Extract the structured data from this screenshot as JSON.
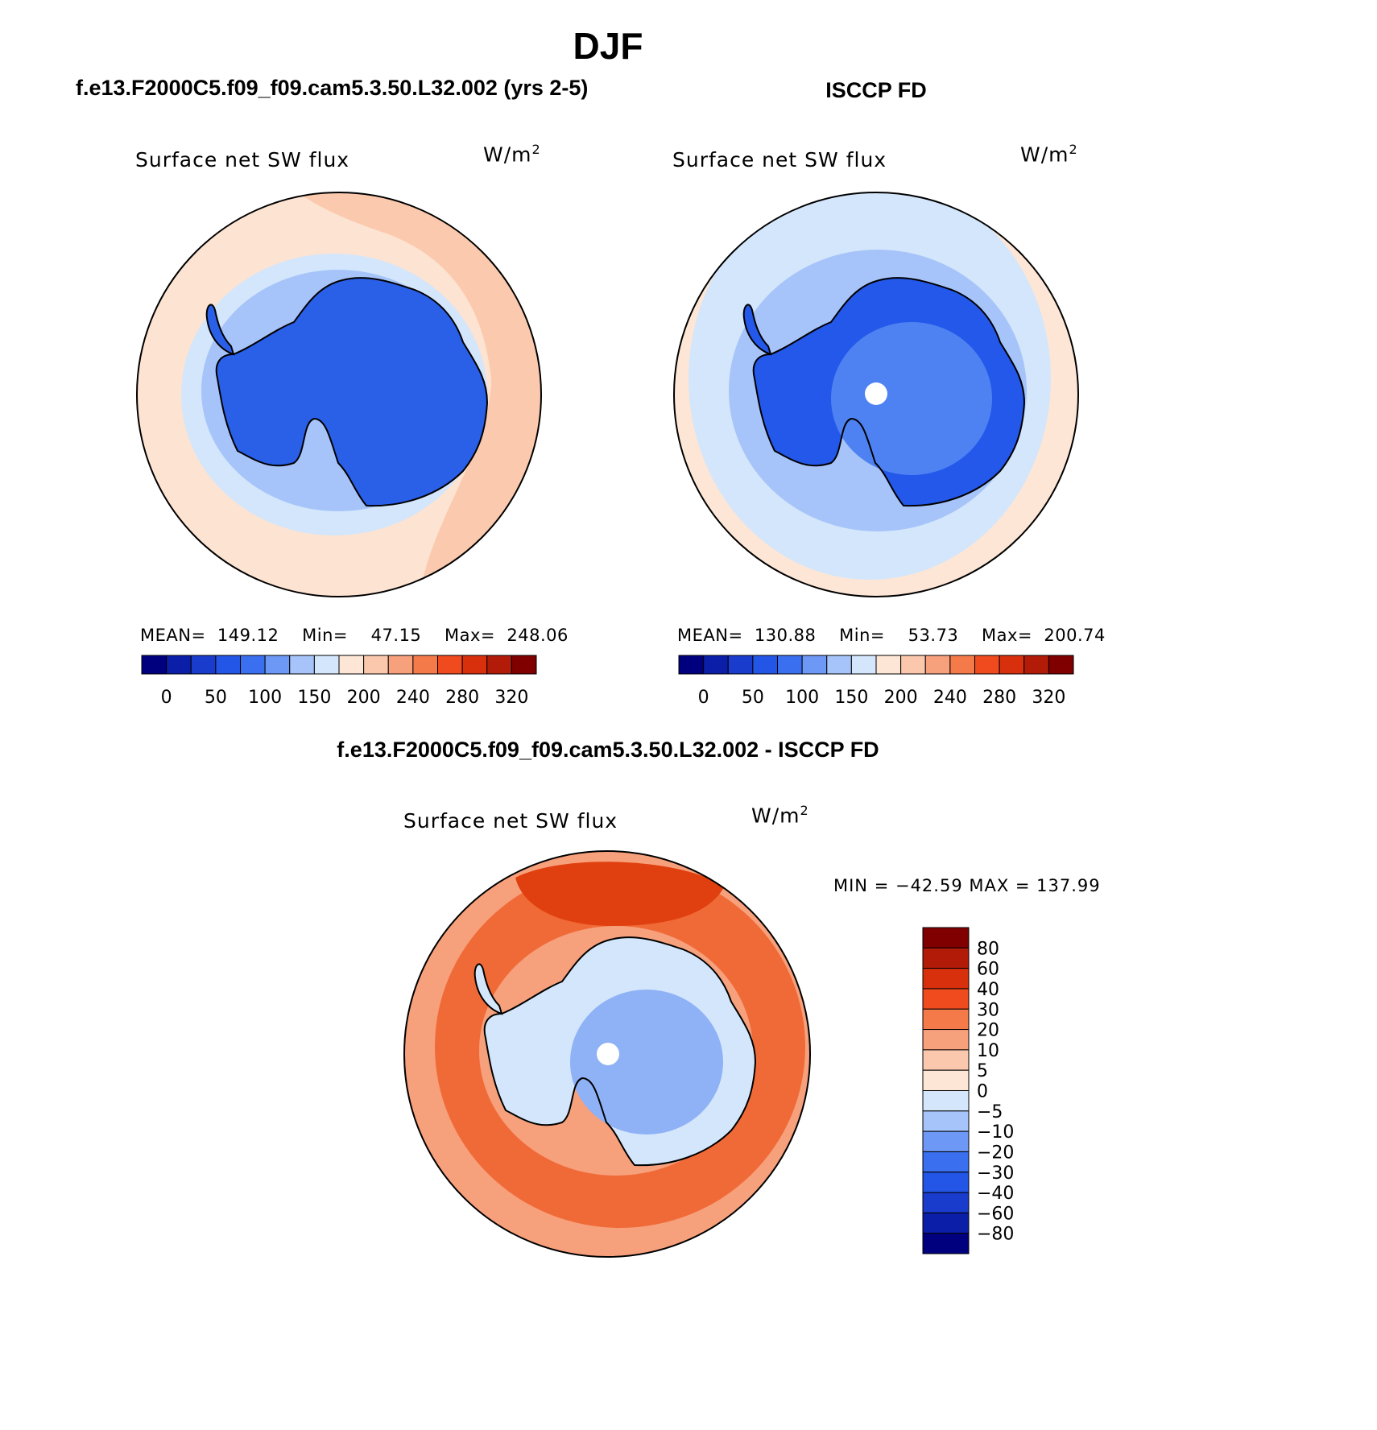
{
  "page": {
    "title": "DJF"
  },
  "panels": [
    {
      "id": "model",
      "heading": "f.e13.F2000C5.f09_f09.cam5.3.50.L32.002 (yrs 2-5)",
      "variable": "Surface net SW flux",
      "units_base": "W/m",
      "units_exp": "2",
      "stats": {
        "mean_label": "MEAN=",
        "mean": "149.12",
        "min_label": "Min=",
        "min": "47.15",
        "max_label": "Max=",
        "max": "248.06"
      }
    },
    {
      "id": "obs",
      "heading": "ISCCP FD",
      "variable": "Surface net SW flux",
      "units_base": "W/m",
      "units_exp": "2",
      "stats": {
        "mean_label": "MEAN=",
        "mean": "130.88",
        "min_label": "Min=",
        "min": "53.73",
        "max_label": "Max=",
        "max": "200.74"
      }
    }
  ],
  "difference": {
    "heading": "f.e13.F2000C5.f09_f09.cam5.3.50.L32.002 - ISCCP FD",
    "variable": "Surface net SW flux",
    "units_base": "W/m",
    "units_exp": "2",
    "range_text": "MIN = −42.59 MAX = 137.99"
  },
  "colorbars": {
    "absolute": {
      "colors": [
        "#00007f",
        "#0a1ea8",
        "#1a3ccc",
        "#2356e6",
        "#3a6ff0",
        "#6e98f5",
        "#a6c4f9",
        "#d3e6fb",
        "#fde6d6",
        "#fbc8ae",
        "#f7a07c",
        "#f57a4a",
        "#f04a1f",
        "#d8300d",
        "#b31b09",
        "#800000"
      ],
      "tick_labels": [
        "0",
        "50",
        "100",
        "150",
        "200",
        "240",
        "280",
        "320"
      ]
    },
    "difference": {
      "colors": [
        "#800000",
        "#b31b09",
        "#d8300d",
        "#f04a1f",
        "#f57a4a",
        "#f7a07c",
        "#fbc8ae",
        "#fde6d6",
        "#d3e6fb",
        "#a6c4f9",
        "#6e98f5",
        "#3a6ff0",
        "#2356e6",
        "#1a3ccc",
        "#0a1ea8",
        "#00007f"
      ],
      "tick_labels": [
        "80",
        "60",
        "40",
        "30",
        "20",
        "10",
        "5",
        "0",
        "−5",
        "−10",
        "−20",
        "−30",
        "−40",
        "−60",
        "−80"
      ]
    }
  },
  "map_colors": {
    "antarctica_model": "#2a5fe8",
    "antarctica_obs_edge": "#2458ea",
    "antarctica_obs_inner": "#4e82f2",
    "ocean_model": "#fde3d2",
    "ocean_model_warm": "#fbcaae",
    "ocean_obs": "#fde6d6",
    "obs_ring_light": "#d3e6fb",
    "obs_ring_mid": "#a6c4f9",
    "diff_outer": "#f7a07c",
    "diff_ring": "#f06a38",
    "diff_strong": "#e0400f",
    "diff_ice": "#d3e6fb",
    "diff_ice_inner": "#8fb1f6",
    "pole_hole": "#ffffff"
  }
}
